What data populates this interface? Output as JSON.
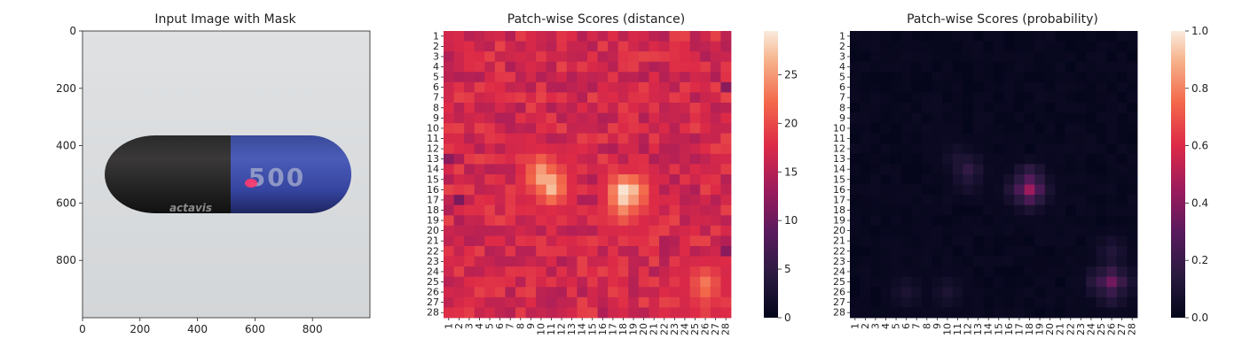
{
  "chart_data": [
    {
      "type": "image",
      "title": "Input Image with Mask",
      "x_ticks": [
        0,
        200,
        400,
        600,
        800
      ],
      "y_ticks": [
        0,
        200,
        400,
        600,
        800
      ],
      "xlim": [
        0,
        1000
      ],
      "ylim": [
        1000,
        0
      ],
      "image_logo_text": "actavis",
      "image_capsule_text": "500",
      "mask_center": [
        590,
        520
      ]
    },
    {
      "type": "heatmap",
      "title": "Patch-wise Scores (distance)",
      "rows": 28,
      "cols": 28,
      "tick_labels": [
        "1",
        "2",
        "3",
        "4",
        "5",
        "6",
        "7",
        "8",
        "9",
        "10",
        "11",
        "12",
        "13",
        "14",
        "15",
        "16",
        "17",
        "18",
        "19",
        "20",
        "21",
        "22",
        "23",
        "24",
        "25",
        "26",
        "27",
        "28"
      ],
      "colorbar_ticks": [
        0,
        5,
        10,
        15,
        20,
        25
      ],
      "vmin": 0,
      "vmax": 29.5,
      "colormap": "rocket",
      "base_value": 17,
      "hotspots": [
        {
          "row": 15,
          "col": 10,
          "value": 26
        },
        {
          "row": 16,
          "col": 11,
          "value": 27
        },
        {
          "row": 15,
          "col": 11,
          "value": 26
        },
        {
          "row": 14,
          "col": 10,
          "value": 25
        },
        {
          "row": 16,
          "col": 18,
          "value": 29
        },
        {
          "row": 17,
          "col": 18,
          "value": 28
        },
        {
          "row": 16,
          "col": 19,
          "value": 27
        },
        {
          "row": 17,
          "col": 19,
          "value": 25
        },
        {
          "row": 18,
          "col": 18,
          "value": 24
        },
        {
          "row": 25,
          "col": 26,
          "value": 23
        },
        {
          "row": 26,
          "col": 26,
          "value": 22
        }
      ],
      "coldspots": [
        {
          "row": 13,
          "col": 1,
          "value": 12
        },
        {
          "row": 17,
          "col": 2,
          "value": 11
        },
        {
          "row": 22,
          "col": 28,
          "value": 12
        },
        {
          "row": 6,
          "col": 28,
          "value": 12
        }
      ]
    },
    {
      "type": "heatmap",
      "title": "Patch-wise Scores (probability)",
      "rows": 28,
      "cols": 28,
      "tick_labels": [
        "1",
        "2",
        "3",
        "4",
        "5",
        "6",
        "7",
        "8",
        "9",
        "10",
        "11",
        "12",
        "13",
        "14",
        "15",
        "16",
        "17",
        "18",
        "19",
        "20",
        "21",
        "22",
        "23",
        "24",
        "25",
        "26",
        "27",
        "28"
      ],
      "colorbar_ticks": [
        0.0,
        0.2,
        0.4,
        0.6,
        0.8,
        1.0
      ],
      "colorbar_tick_labels": [
        "0.0",
        "0.2",
        "0.4",
        "0.6",
        "0.8",
        "1.0"
      ],
      "vmin": 0,
      "vmax": 1,
      "colormap": "rocket",
      "base_value": 0.02,
      "hotspots": [
        {
          "row": 16,
          "col": 18,
          "value": 0.45
        },
        {
          "row": 15,
          "col": 18,
          "value": 0.28
        },
        {
          "row": 16,
          "col": 17,
          "value": 0.2
        },
        {
          "row": 17,
          "col": 18,
          "value": 0.16
        },
        {
          "row": 16,
          "col": 19,
          "value": 0.15
        },
        {
          "row": 14,
          "col": 12,
          "value": 0.17
        },
        {
          "row": 15,
          "col": 12,
          "value": 0.12
        },
        {
          "row": 13,
          "col": 11,
          "value": 0.1
        },
        {
          "row": 25,
          "col": 26,
          "value": 0.35
        },
        {
          "row": 25,
          "col": 25,
          "value": 0.22
        },
        {
          "row": 26,
          "col": 26,
          "value": 0.2
        },
        {
          "row": 25,
          "col": 27,
          "value": 0.15
        },
        {
          "row": 22,
          "col": 26,
          "value": 0.12
        },
        {
          "row": 23,
          "col": 26,
          "value": 0.1
        },
        {
          "row": 26,
          "col": 6,
          "value": 0.1
        },
        {
          "row": 26,
          "col": 10,
          "value": 0.1
        }
      ]
    }
  ]
}
